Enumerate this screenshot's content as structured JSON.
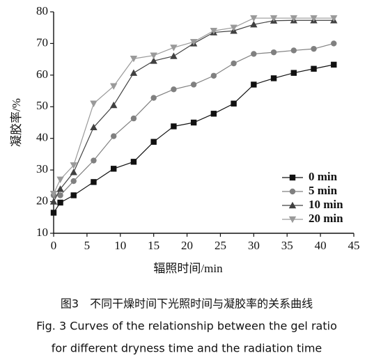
{
  "chart_data": {
    "type": "line",
    "x_label": "辐照时间/min",
    "y_label": "凝胶率/%",
    "x": [
      0,
      1,
      3,
      6,
      9,
      12,
      15,
      18,
      21,
      24,
      27,
      30,
      33,
      36,
      39,
      42
    ],
    "series": [
      {
        "name": "0 min",
        "color": "#111111",
        "marker": "square",
        "values": [
          16.5,
          19.7,
          22,
          26.2,
          30.4,
          32.6,
          38.9,
          43.8,
          45,
          47.8,
          51,
          57,
          59,
          60.7,
          62,
          63.3
        ]
      },
      {
        "name": "5 min",
        "color": "#808080",
        "marker": "circle",
        "values": [
          22,
          22,
          26.5,
          33,
          40.7,
          46.3,
          52.8,
          55.5,
          57,
          59.8,
          63.7,
          66.7,
          67.2,
          67.8,
          68.3,
          70
        ]
      },
      {
        "name": "10 min",
        "color": "#404040",
        "marker": "triangle-up",
        "values": [
          20,
          24,
          29.3,
          43.5,
          50.5,
          60.7,
          64.5,
          66,
          70,
          73.5,
          74,
          76,
          77.2,
          77.3,
          77.3,
          77.3
        ]
      },
      {
        "name": "20 min",
        "color": "#9a9a9a",
        "marker": "triangle-down",
        "values": [
          22.5,
          27,
          31.5,
          51,
          56.5,
          65.2,
          66.2,
          68.7,
          70.5,
          74,
          75,
          78,
          78,
          78,
          78,
          78
        ]
      }
    ],
    "xlim": [
      0,
      45
    ],
    "xticks": [
      0,
      5,
      10,
      15,
      20,
      25,
      30,
      35,
      40,
      45
    ],
    "ylim": [
      10,
      80
    ],
    "yticks": [
      10,
      20,
      30,
      40,
      50,
      60,
      70,
      80
    ],
    "grid": false,
    "legend": "lower right"
  },
  "caption": {
    "zh": "图3　不同干燥时间下光照时间与凝胶率的关系曲线",
    "en_line1": "Fig. 3 Curves of the relationship between the gel ratio",
    "en_line2": "for different dryness time and the radiation time"
  }
}
